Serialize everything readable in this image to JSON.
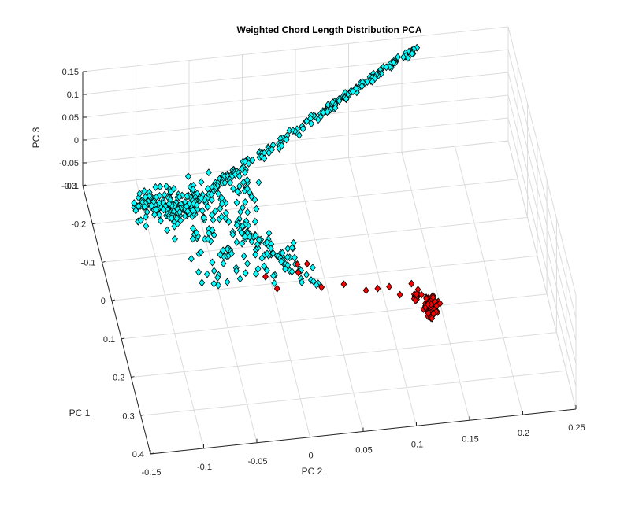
{
  "chart_data": {
    "type": "scatter",
    "projection": "3d",
    "title": "Weighted Chord Length Distribution PCA",
    "xlabel": "PC 1",
    "ylabel": "PC 2",
    "zlabel": "PC 3",
    "xlim": [
      -0.3,
      0.4
    ],
    "ylim": [
      -0.15,
      0.25
    ],
    "zlim": [
      -0.1,
      0.15
    ],
    "xticks": [
      -0.3,
      -0.2,
      -0.1,
      0,
      0.1,
      0.2,
      0.3,
      0.4
    ],
    "xtick_labels": [
      "-0.3",
      "-0.2",
      "-0.1",
      "0",
      "0.1",
      "0.2",
      "0.3",
      "0.4"
    ],
    "yticks": [
      -0.15,
      -0.1,
      -0.05,
      0,
      0.05,
      0.1,
      0.15,
      0.2,
      0.25
    ],
    "ytick_labels": [
      "-0.15",
      "-0.1",
      "-0.05",
      "0",
      "0.05",
      "0.1",
      "0.15",
      "0.2",
      "0.25"
    ],
    "zticks": [
      -0.1,
      -0.05,
      0,
      0.05,
      0.1,
      0.15
    ],
    "ztick_labels": [
      "-0.1",
      "-0.05",
      "0",
      "0.05",
      "0.1",
      "0.15"
    ],
    "grid": true,
    "marker": "diamond",
    "series": [
      {
        "name": "cyan group",
        "color": "#00ffff",
        "edge_color": "#000000",
        "structure": [
          {
            "x": [
              -0.12,
              -0.06
            ],
            "y": [
              -0.12,
              -0.06
            ],
            "z": [
              0.0,
              0.04
            ],
            "n": 120
          },
          {
            "x": [
              -0.17,
              -0.05
            ],
            "y": [
              -0.09,
              0.0
            ],
            "z": [
              -0.05,
              0.02
            ],
            "n": 90
          },
          {
            "x": [
              0.0,
              0.09
            ],
            "y": [
              -0.08,
              0.02
            ],
            "z": [
              -0.03,
              0.03
            ],
            "n": 60
          }
        ],
        "arms": [
          {
            "from": [
              -0.04,
              -0.1,
              0.02
            ],
            "to": [
              -0.28,
              0.16,
              0.14
            ],
            "n": 200,
            "jitter": [
              0.025,
              0.006,
              0.006
            ]
          },
          {
            "from": [
              -0.06,
              -0.04,
              0.01
            ],
            "to": [
              0.06,
              0.04,
              -0.06
            ],
            "n": 55,
            "jitter": [
              0.01,
              0.015,
              0.02
            ]
          }
        ]
      },
      {
        "name": "red group",
        "color": "#ff0000",
        "edge_color": "#000000",
        "points": [
          [
            0.05,
            -0.01,
            -0.04
          ],
          [
            0.04,
            0.03,
            -0.03
          ],
          [
            0.06,
            0.02,
            -0.03
          ],
          [
            0.06,
            0.0,
            -0.06
          ],
          [
            0.08,
            0.04,
            -0.05
          ],
          [
            0.09,
            0.06,
            -0.04
          ],
          [
            0.1,
            0.08,
            -0.05
          ],
          [
            0.11,
            0.09,
            -0.04
          ],
          [
            0.12,
            0.1,
            -0.03
          ],
          [
            0.12,
            0.11,
            -0.05
          ],
          [
            0.13,
            0.12,
            -0.02
          ],
          [
            0.05,
            0.02,
            -0.02
          ]
        ],
        "clusters": [
          {
            "center": [
              0.16,
              0.135,
              -0.05
            ],
            "spread": [
              0.025,
              0.01,
              0.03
            ],
            "n": 40
          },
          {
            "center": [
              0.07,
              0.13,
              -0.1
            ],
            "spread": [
              0.015,
              0.008,
              0.015
            ],
            "n": 14
          }
        ]
      }
    ]
  }
}
